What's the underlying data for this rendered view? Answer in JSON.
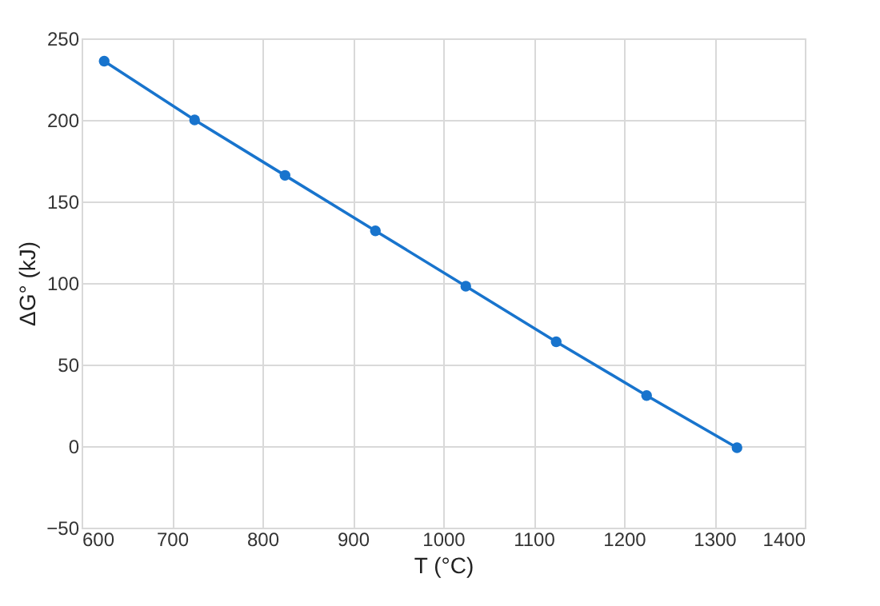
{
  "chart_data": {
    "type": "line",
    "xlabel": "T (°C)",
    "ylabel": "ΔG° (kJ)",
    "x": [
      625,
      725,
      825,
      925,
      1025,
      1125,
      1225,
      1325
    ],
    "series": [
      {
        "color": "#1874cd",
        "values": [
          236,
          200,
          166,
          132,
          98,
          64,
          31,
          -1
        ]
      }
    ],
    "xlim": [
      600,
      1400
    ],
    "xticks": [
      600,
      700,
      800,
      900,
      1000,
      1100,
      1200,
      1300,
      1400
    ],
    "ylim": [
      -50,
      250
    ],
    "yticks": [
      {
        "value": -50,
        "label": "−50"
      },
      0,
      50,
      100,
      150,
      200,
      250
    ],
    "grid": true,
    "marker": "circle",
    "line_style": "solid"
  }
}
